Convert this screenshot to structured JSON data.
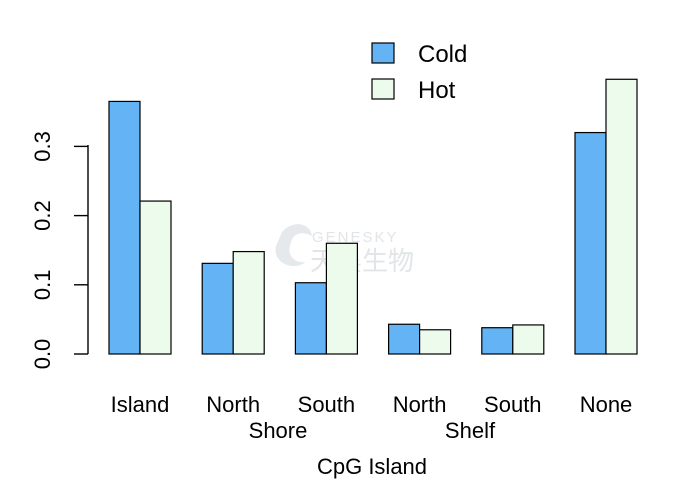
{
  "chart_data": {
    "type": "bar",
    "title": "",
    "xlabel": "CpG Island",
    "ylabel": "",
    "categories": [
      "Island",
      "North",
      "South",
      "North",
      "South",
      "None"
    ],
    "group_labels": [
      "Shore",
      "Shelf"
    ],
    "series": [
      {
        "name": "Cold",
        "color": "#63b3f5",
        "values": [
          0.365,
          0.131,
          0.103,
          0.043,
          0.038,
          0.32
        ]
      },
      {
        "name": "Hot",
        "color": "#ecfbec",
        "values": [
          0.221,
          0.148,
          0.16,
          0.035,
          0.042,
          0.397
        ]
      }
    ],
    "ylim": [
      0,
      0.4
    ],
    "yticks": [
      "0.0",
      "0.1",
      "0.2",
      "0.3"
    ],
    "grid": false,
    "legend_position": "top-center"
  },
  "watermark": {
    "brand_latin": "GENESKY",
    "brand_cjk": "天昊生物"
  }
}
